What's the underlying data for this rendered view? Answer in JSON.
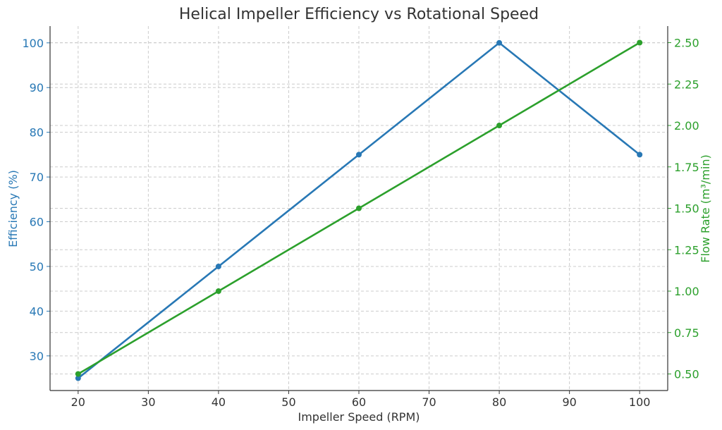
{
  "chart_data": {
    "type": "line",
    "title": "Helical Impeller Efficiency vs Rotational Speed",
    "xlabel": "Impeller Speed (RPM)",
    "ylabel_left": "Efficiency (%)",
    "ylabel_right": "Flow Rate (m³/min)",
    "x": [
      20,
      40,
      60,
      80,
      100
    ],
    "x_ticks": [
      "20",
      "30",
      "40",
      "50",
      "60",
      "70",
      "80",
      "90",
      "100"
    ],
    "y_left_ticks": [
      "30",
      "40",
      "50",
      "60",
      "70",
      "80",
      "90",
      "100"
    ],
    "y_right_ticks": [
      "0.50",
      "0.75",
      "1.00",
      "1.25",
      "1.50",
      "1.75",
      "2.00",
      "2.25",
      "2.50"
    ],
    "xlim": [
      16,
      104
    ],
    "ylim_left": [
      22.25,
      103.75
    ],
    "ylim_right": [
      0.4,
      2.6
    ],
    "grid": true,
    "series": [
      {
        "axis": "left",
        "color": "#2878b5",
        "values": [
          25,
          50,
          75,
          100,
          75
        ]
      },
      {
        "axis": "right",
        "color": "#2ca02c",
        "values": [
          0.5,
          1.0,
          1.5,
          2.0,
          2.5
        ]
      }
    ]
  }
}
